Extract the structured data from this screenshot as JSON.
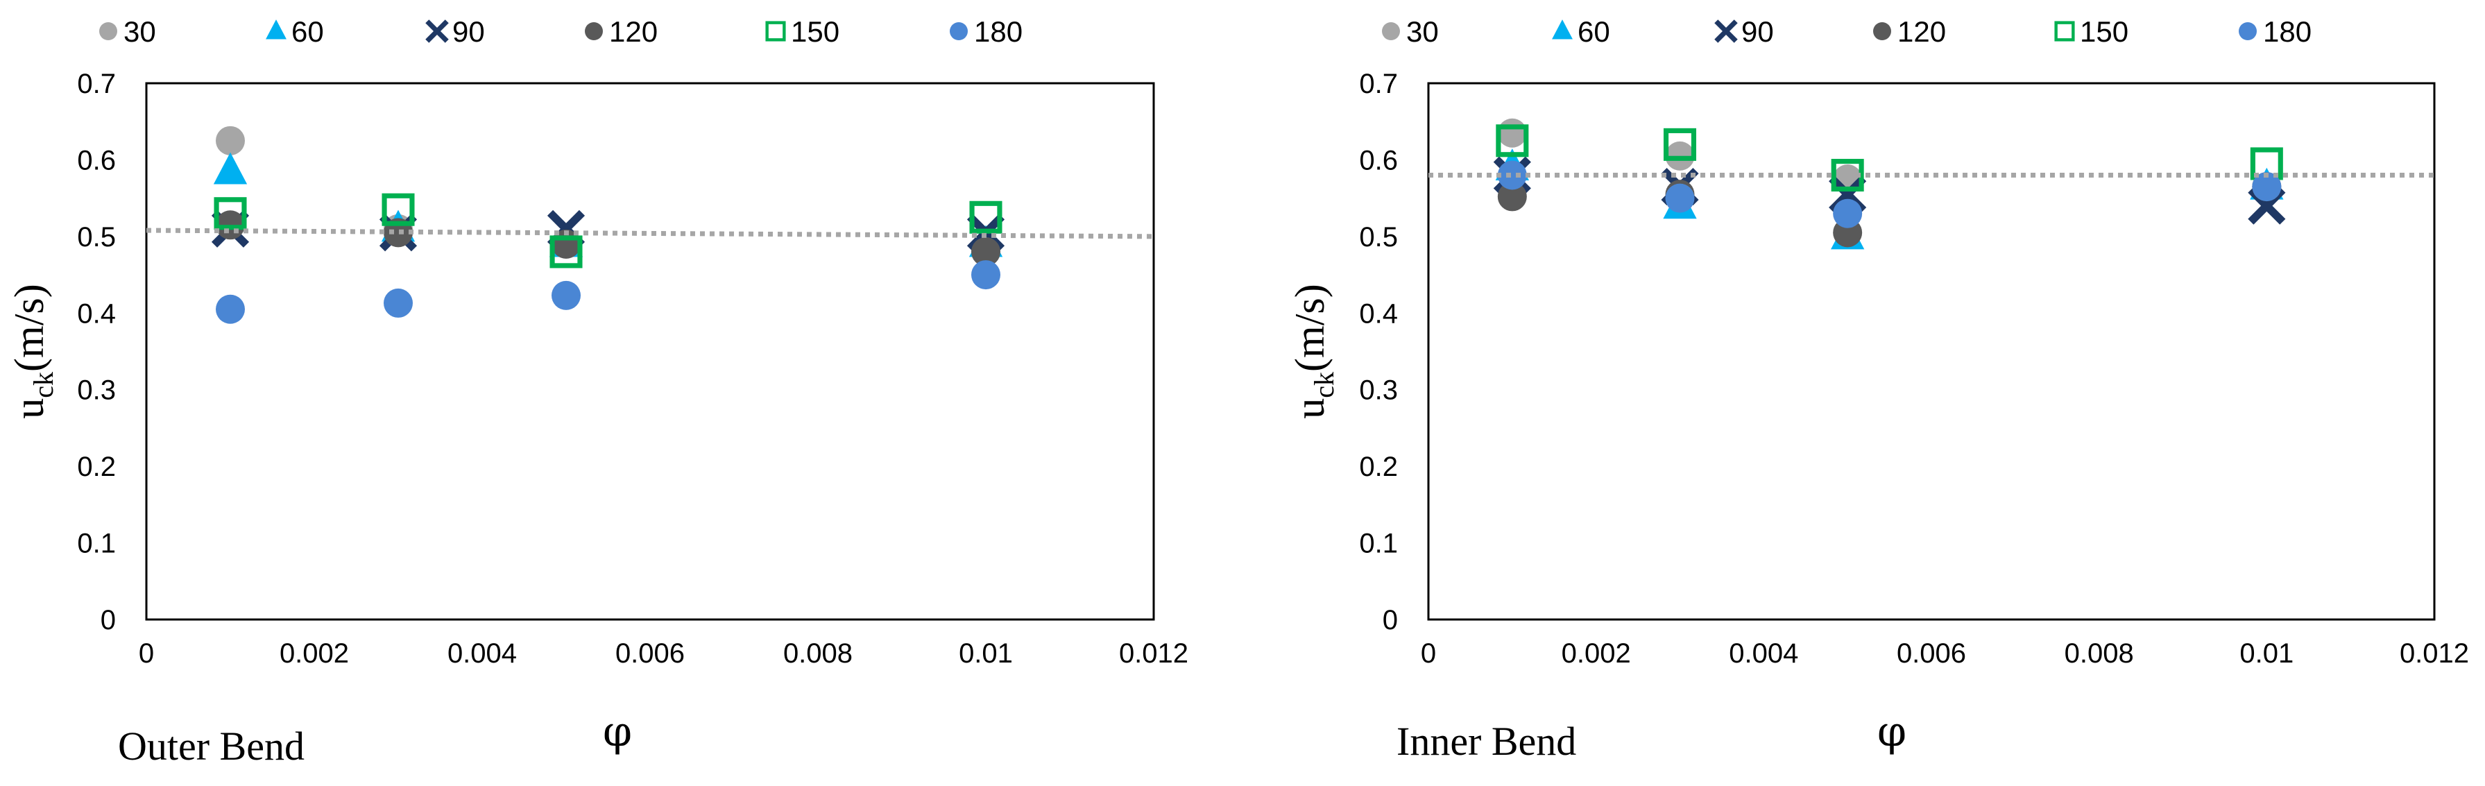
{
  "series_styles": [
    {
      "name": "30",
      "marker": "circle",
      "color": "#a6a6a6"
    },
    {
      "name": "60",
      "marker": "triangle",
      "color": "#00b0f0"
    },
    {
      "name": "90",
      "marker": "x",
      "color": "#1f3864"
    },
    {
      "name": "120",
      "marker": "circle",
      "color": "#595959"
    },
    {
      "name": "150",
      "marker": "square-open",
      "color": "#00b050"
    },
    {
      "name": "180",
      "marker": "circle",
      "color": "#4a86d4"
    }
  ],
  "trendline_color": "#a6a6a6",
  "chart_data": [
    {
      "type": "scatter",
      "panel_label": "Outer Bend",
      "xlabel": "φ",
      "ylabel": {
        "main": "u",
        "sub": "ck",
        "unit": "(m/s)"
      },
      "xlim": [
        0,
        0.012
      ],
      "ylim": [
        0,
        0.7
      ],
      "xticks": [
        0,
        0.002,
        0.004,
        0.006,
        0.008,
        0.01,
        0.012
      ],
      "xtick_labels": [
        "0",
        "0.002",
        "0.004",
        "0.006",
        "0.008",
        "0.01",
        "0.012"
      ],
      "yticks": [
        0,
        0.1,
        0.2,
        0.3,
        0.4,
        0.5,
        0.6,
        0.7
      ],
      "ytick_labels": [
        "0",
        "0.1",
        "0.2",
        "0.3",
        "0.4",
        "0.5",
        "0.6",
        "0.7"
      ],
      "grid": false,
      "legend": "top",
      "trendline": {
        "x": [
          0,
          0.012
        ],
        "y": [
          0.508,
          0.5
        ]
      },
      "series": [
        {
          "name": "30",
          "x": [
            0.001,
            0.003,
            0.005,
            0.01
          ],
          "y": [
            0.625,
            0.51,
            0.49,
            0.48
          ]
        },
        {
          "name": "60",
          "x": [
            0.001,
            0.003,
            0.005,
            0.01
          ],
          "y": [
            0.585,
            0.51,
            0.49,
            0.49
          ]
        },
        {
          "name": "90",
          "x": [
            0.001,
            0.003,
            0.005,
            0.01
          ],
          "y": [
            0.51,
            0.505,
            0.51,
            0.505
          ]
        },
        {
          "name": "120",
          "x": [
            0.001,
            0.003,
            0.005,
            0.01
          ],
          "y": [
            0.515,
            0.505,
            0.49,
            0.48
          ]
        },
        {
          "name": "150",
          "x": [
            0.001,
            0.003,
            0.005,
            0.01
          ],
          "y": [
            0.53,
            0.535,
            0.48,
            0.525
          ]
        },
        {
          "name": "180",
          "x": [
            0.001,
            0.003,
            0.005,
            0.01
          ],
          "y": [
            0.405,
            0.413,
            0.423,
            0.45
          ]
        }
      ]
    },
    {
      "type": "scatter",
      "panel_label": "Inner Bend",
      "xlabel": "φ",
      "ylabel": {
        "main": "u",
        "sub": "ck",
        "unit": "(m/s)"
      },
      "xlim": [
        0,
        0.012
      ],
      "ylim": [
        0,
        0.7
      ],
      "xticks": [
        0,
        0.002,
        0.004,
        0.006,
        0.008,
        0.01,
        0.012
      ],
      "xtick_labels": [
        "0",
        "0.002",
        "0.004",
        "0.006",
        "0.008",
        "0.01",
        "0.012"
      ],
      "yticks": [
        0,
        0.1,
        0.2,
        0.3,
        0.4,
        0.5,
        0.6,
        0.7
      ],
      "ytick_labels": [
        "0",
        "0.1",
        "0.2",
        "0.3",
        "0.4",
        "0.5",
        "0.6",
        "0.7"
      ],
      "grid": false,
      "legend": "top",
      "trendline": {
        "x": [
          0,
          0.012
        ],
        "y": [
          0.58,
          0.58
        ]
      },
      "series": [
        {
          "name": "30",
          "x": [
            0.001,
            0.003,
            0.005,
            0.01
          ],
          "y": [
            0.635,
            0.605,
            0.575,
            0.565
          ]
        },
        {
          "name": "60",
          "x": [
            0.001,
            0.003,
            0.005,
            0.01
          ],
          "y": [
            0.59,
            0.54,
            0.5,
            0.565
          ]
        },
        {
          "name": "90",
          "x": [
            0.001,
            0.003,
            0.005,
            0.01
          ],
          "y": [
            0.58,
            0.565,
            0.555,
            0.54
          ]
        },
        {
          "name": "120",
          "x": [
            0.001,
            0.003,
            0.005,
            0.01
          ],
          "y": [
            0.552,
            0.555,
            0.505,
            0.565
          ]
        },
        {
          "name": "150",
          "x": [
            0.001,
            0.003,
            0.005,
            0.01
          ],
          "y": [
            0.625,
            0.62,
            0.58,
            0.595
          ]
        },
        {
          "name": "180",
          "x": [
            0.001,
            0.003,
            0.005,
            0.01
          ],
          "y": [
            0.58,
            0.55,
            0.53,
            0.565
          ]
        }
      ]
    }
  ]
}
